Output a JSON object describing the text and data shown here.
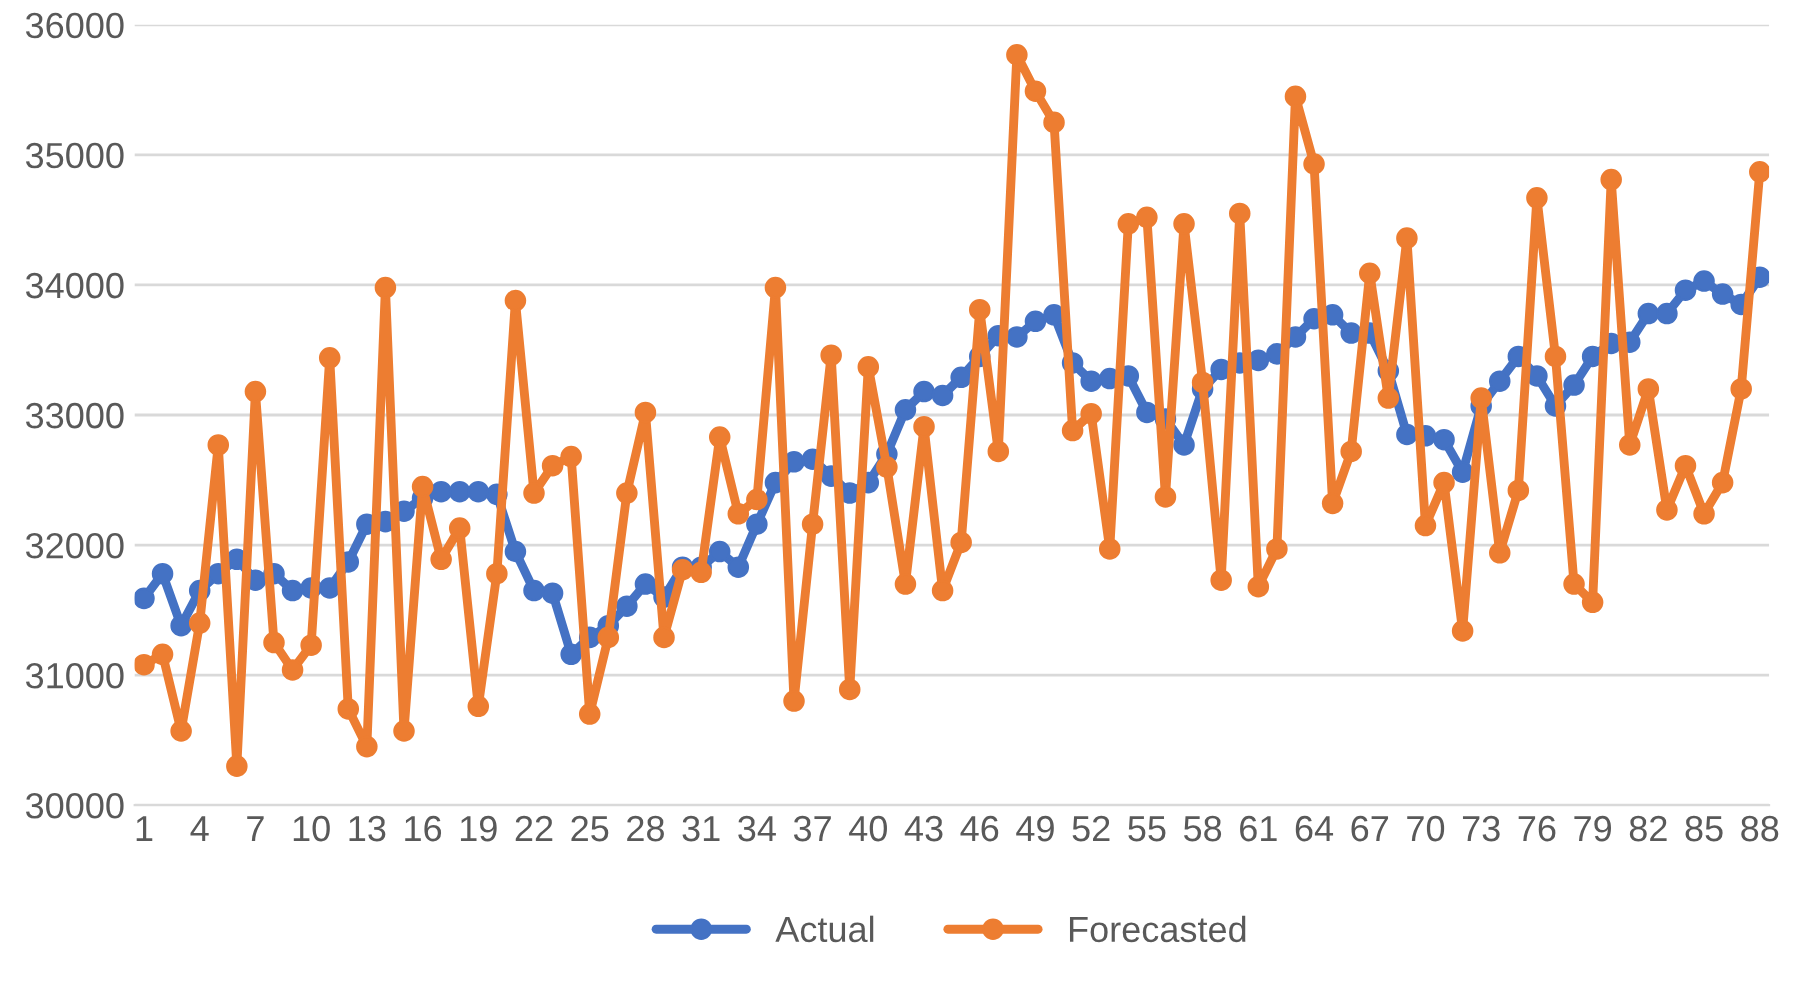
{
  "chart_data": {
    "type": "line",
    "categories": [
      "1",
      null,
      null,
      "4",
      null,
      null,
      "7",
      null,
      null,
      "10",
      null,
      null,
      "13",
      null,
      null,
      "16",
      null,
      null,
      "19",
      null,
      null,
      "22",
      null,
      null,
      "25",
      null,
      null,
      "28",
      null,
      null,
      "31",
      null,
      null,
      "34",
      null,
      null,
      "37",
      null,
      null,
      "40",
      null,
      null,
      "43",
      null,
      null,
      "46",
      null,
      null,
      "49",
      null,
      null,
      "52",
      null,
      null,
      "55",
      null,
      null,
      "58",
      null,
      null,
      "61",
      null,
      null,
      "64",
      null,
      null,
      "67",
      null,
      null,
      "70",
      null,
      null,
      "73",
      null,
      null,
      "76",
      null,
      null,
      "79",
      null,
      null,
      "82",
      null,
      null,
      "85",
      null,
      null,
      "88"
    ],
    "series": [
      {
        "name": "Actual",
        "color": "#4472c4",
        "values": [
          31590,
          31780,
          31380,
          31650,
          31780,
          31890,
          31730,
          31780,
          31650,
          31670,
          31670,
          31870,
          32160,
          32180,
          32260,
          32360,
          32410,
          32410,
          32410,
          32390,
          31950,
          31650,
          31630,
          31160,
          31290,
          31380,
          31530,
          31700,
          31600,
          31830,
          31830,
          31950,
          31830,
          32160,
          32480,
          32640,
          32660,
          32530,
          32400,
          32480,
          32700,
          33040,
          33180,
          33150,
          33290,
          33450,
          33610,
          33600,
          33720,
          33770,
          33400,
          33260,
          33280,
          33300,
          33020,
          32970,
          32770,
          33200,
          33350,
          33400,
          33420,
          33470,
          33600,
          33740,
          33770,
          33630,
          33630,
          33340,
          32850,
          32840,
          32810,
          32560,
          33070,
          33260,
          33450,
          33300,
          33070,
          33230,
          33450,
          33550,
          33560,
          33780,
          33780,
          33960,
          34030,
          33930,
          33850,
          34060
        ]
      },
      {
        "name": "Forecasted",
        "color": "#ed7d31",
        "values": [
          31080,
          31160,
          30570,
          31400,
          32770,
          30300,
          33180,
          31250,
          31040,
          31230,
          33440,
          30740,
          30450,
          33980,
          30570,
          32450,
          31890,
          32130,
          30760,
          31780,
          33880,
          32400,
          32610,
          32680,
          30700,
          31290,
          32400,
          33020,
          31290,
          31810,
          31790,
          32830,
          32240,
          32350,
          33980,
          30800,
          32160,
          33460,
          30890,
          33370,
          32600,
          31700,
          32910,
          31650,
          32020,
          33810,
          32720,
          35770,
          35490,
          35250,
          32880,
          33010,
          31970,
          34470,
          34520,
          32370,
          34470,
          33250,
          31730,
          34550,
          31680,
          31970,
          35450,
          34930,
          32320,
          32720,
          34090,
          33130,
          34360,
          32150,
          32480,
          31340,
          33130,
          31940,
          32420,
          34670,
          33450,
          31700,
          31560,
          34810,
          32770,
          33200,
          32270,
          32610,
          32240,
          32480,
          33200,
          34870
        ]
      }
    ],
    "ylim": [
      30000,
      36000
    ],
    "yticks": [
      30000,
      31000,
      32000,
      33000,
      34000,
      35000,
      36000
    ],
    "grid": "y",
    "legend": "bottom",
    "marker": "circle",
    "line_style": "solid"
  }
}
